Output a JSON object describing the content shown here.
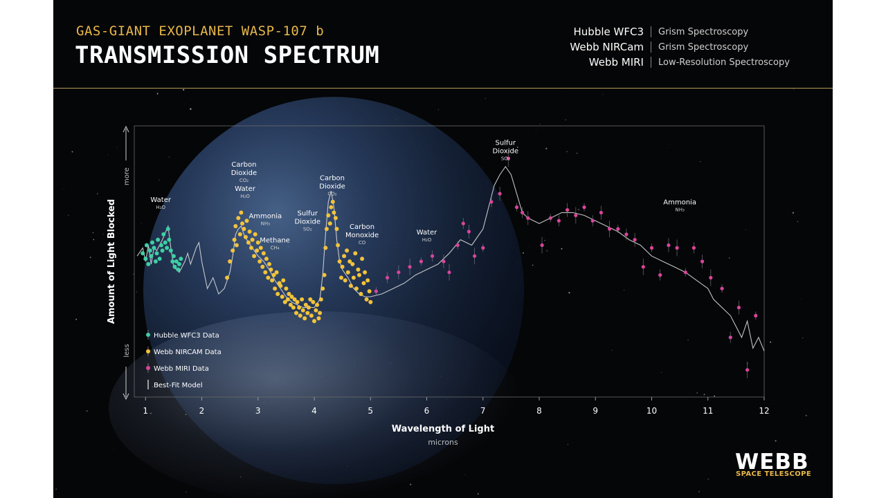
{
  "header": {
    "subtitle": "GAS-GIANT EXOPLANET WASP-107 b",
    "title": "TRANSMISSION SPECTRUM",
    "instruments": [
      {
        "name": "Hubble WFC3",
        "mode": "Grism Spectroscopy"
      },
      {
        "name": "Webb NIRCam",
        "mode": "Grism Spectroscopy"
      },
      {
        "name": "Webb MIRI",
        "mode": "Low-Resolution Spectroscopy"
      }
    ]
  },
  "logo": {
    "word": "WEBB",
    "sub": "SPACE TELESCOPE"
  },
  "chart_data": {
    "type": "scatter",
    "xlabel": "Wavelength of Light",
    "xunits": "microns",
    "ylabel": "Amount of Light Blocked",
    "y_more": "more",
    "y_less": "less",
    "xlim": [
      0.8,
      12
    ],
    "ylim": [
      0,
      100
    ],
    "xticks": [
      "1",
      "2",
      "3",
      "4",
      "5",
      "6",
      "7",
      "8",
      "9",
      "10",
      "11",
      "12"
    ],
    "legend": [
      {
        "label": "Hubble WFC3 Data",
        "color": "#3ecfa5"
      },
      {
        "label": "Webb NIRCAM Data",
        "color": "#f2c33b"
      },
      {
        "label": "Webb MIRI Data",
        "color": "#d9459b"
      },
      {
        "label": "Best-Fit Model",
        "color": "#d8d8d8"
      }
    ],
    "legend_position": "bottom-left",
    "annotations": [
      {
        "name": "Water",
        "formula": "H₂O",
        "x": 1.27,
        "y": 72
      },
      {
        "name": "Carbon Dioxide",
        "formula": "CO₂",
        "x": 2.75,
        "y": 85
      },
      {
        "name": "Water",
        "formula": "H₂O",
        "x": 2.77,
        "y": 76
      },
      {
        "name": "Ammonia",
        "formula": "NH₃",
        "x": 3.13,
        "y": 66
      },
      {
        "name": "Methane",
        "formula": "CH₄",
        "x": 3.3,
        "y": 57
      },
      {
        "name": "Sulfur Dioxide",
        "formula": "SO₂",
        "x": 3.88,
        "y": 67
      },
      {
        "name": "Carbon Dioxide",
        "formula": "CO₂",
        "x": 4.32,
        "y": 80
      },
      {
        "name": "Carbon Monoxide",
        "formula": "CO",
        "x": 4.85,
        "y": 62
      },
      {
        "name": "Water",
        "formula": "H₂O",
        "x": 6.0,
        "y": 60
      },
      {
        "name": "Sulfur Dioxide",
        "formula": "SO₂",
        "x": 7.4,
        "y": 93
      },
      {
        "name": "Ammonia",
        "formula": "NH₃",
        "x": 10.5,
        "y": 71
      }
    ],
    "model": {
      "x": [
        0.85,
        0.95,
        1.0,
        1.05,
        1.1,
        1.15,
        1.2,
        1.3,
        1.4,
        1.45,
        1.5,
        1.6,
        1.7,
        1.75,
        1.8,
        1.9,
        1.95,
        2.0,
        2.1,
        2.2,
        2.3,
        2.4,
        2.5,
        2.55,
        2.6,
        2.65,
        2.7,
        2.75,
        2.8,
        2.9,
        3.0,
        3.1,
        3.2,
        3.3,
        3.4,
        3.5,
        3.6,
        3.7,
        3.8,
        3.9,
        4.0,
        4.1,
        4.15,
        4.2,
        4.25,
        4.3,
        4.35,
        4.4,
        4.45,
        4.5,
        4.6,
        4.7,
        4.8,
        4.9,
        5.0,
        5.2,
        5.4,
        5.6,
        5.8,
        6.0,
        6.2,
        6.4,
        6.6,
        6.8,
        7.0,
        7.1,
        7.2,
        7.3,
        7.4,
        7.5,
        7.6,
        7.7,
        7.8,
        8.0,
        8.2,
        8.4,
        8.6,
        8.8,
        9.0,
        9.2,
        9.4,
        9.6,
        9.8,
        10.0,
        10.2,
        10.4,
        10.6,
        10.8,
        11.0,
        11.1,
        11.2,
        11.4,
        11.5,
        11.6,
        11.7,
        11.8,
        11.9,
        12.0
      ],
      "y": [
        52,
        55,
        50,
        56,
        49,
        55,
        54,
        58,
        63,
        55,
        48,
        46,
        50,
        53,
        49,
        55,
        57,
        50,
        40,
        44,
        38,
        40,
        46,
        52,
        60,
        62,
        63,
        60,
        58,
        55,
        52,
        50,
        47,
        43,
        40,
        37,
        35,
        34,
        33,
        33,
        33,
        36,
        45,
        60,
        72,
        76,
        70,
        58,
        50,
        47,
        44,
        40,
        38,
        37,
        37,
        38,
        40,
        42,
        45,
        47,
        49,
        53,
        58,
        56,
        62,
        70,
        78,
        82,
        85,
        82,
        75,
        68,
        66,
        64,
        66,
        68,
        68,
        67,
        65,
        63,
        61,
        58,
        56,
        52,
        50,
        48,
        46,
        43,
        40,
        36,
        34,
        30,
        26,
        22,
        28,
        18,
        22,
        17
      ]
    },
    "series": [
      {
        "name": "Hubble WFC3 Data",
        "x": [
          0.95,
          1.0,
          1.02,
          1.05,
          1.08,
          1.1,
          1.12,
          1.15,
          1.18,
          1.2,
          1.22,
          1.25,
          1.28,
          1.3,
          1.32,
          1.35,
          1.38,
          1.4,
          1.42,
          1.45,
          1.48,
          1.5,
          1.52,
          1.55,
          1.58,
          1.6,
          1.63
        ],
        "y": [
          53,
          51,
          56,
          49,
          54,
          52,
          57,
          55,
          50,
          53,
          58,
          51,
          56,
          54,
          60,
          57,
          55,
          62,
          58,
          54,
          50,
          52,
          48,
          50,
          47,
          49,
          51
        ]
      },
      {
        "name": "Webb NIRCAM Data",
        "x": [
          2.45,
          2.5,
          2.55,
          2.58,
          2.6,
          2.62,
          2.65,
          2.68,
          2.7,
          2.72,
          2.75,
          2.78,
          2.8,
          2.83,
          2.85,
          2.88,
          2.9,
          2.93,
          2.95,
          2.98,
          3.0,
          3.03,
          3.05,
          3.08,
          3.1,
          3.13,
          3.15,
          3.18,
          3.2,
          3.23,
          3.25,
          3.28,
          3.3,
          3.33,
          3.35,
          3.38,
          3.4,
          3.43,
          3.45,
          3.48,
          3.5,
          3.53,
          3.55,
          3.58,
          3.6,
          3.63,
          3.65,
          3.68,
          3.7,
          3.73,
          3.75,
          3.78,
          3.8,
          3.83,
          3.85,
          3.88,
          3.9,
          3.93,
          3.95,
          3.98,
          4.0,
          4.03,
          4.05,
          4.08,
          4.1,
          4.12,
          4.15,
          4.18,
          4.2,
          4.22,
          4.25,
          4.28,
          4.3,
          4.33,
          4.35,
          4.38,
          4.4,
          4.42,
          4.45,
          4.48,
          4.5,
          4.53,
          4.55,
          4.58,
          4.6,
          4.63,
          4.65,
          4.68,
          4.7,
          4.73,
          4.75,
          4.78,
          4.8,
          4.83,
          4.85,
          4.88,
          4.9,
          4.93,
          4.95,
          4.98,
          5.0
        ],
        "y": [
          44,
          50,
          54,
          58,
          63,
          56,
          66,
          60,
          68,
          64,
          62,
          59,
          65,
          57,
          61,
          55,
          58,
          52,
          60,
          54,
          57,
          50,
          55,
          48,
          53,
          46,
          51,
          44,
          49,
          47,
          43,
          45,
          40,
          46,
          38,
          42,
          41,
          37,
          43,
          35,
          40,
          36,
          38,
          34,
          37,
          33,
          36,
          31,
          35,
          33,
          30,
          36,
          32,
          29,
          34,
          31,
          33,
          36,
          30,
          35,
          28,
          32,
          34,
          29,
          31,
          36,
          40,
          45,
          55,
          62,
          67,
          64,
          70,
          72,
          68,
          66,
          62,
          56,
          50,
          44,
          48,
          52,
          43,
          54,
          46,
          50,
          41,
          49,
          44,
          53,
          40,
          47,
          45,
          38,
          51,
          42,
          46,
          36,
          43,
          39,
          35
        ]
      },
      {
        "name": "Webb MIRI Data",
        "x": [
          5.1,
          5.3,
          5.5,
          5.7,
          5.9,
          6.1,
          6.3,
          6.4,
          6.55,
          6.65,
          6.75,
          6.85,
          7.0,
          7.15,
          7.3,
          7.45,
          7.6,
          7.7,
          7.8,
          8.05,
          8.2,
          8.35,
          8.5,
          8.65,
          8.8,
          8.95,
          9.1,
          9.25,
          9.4,
          9.55,
          9.7,
          9.85,
          10.0,
          10.15,
          10.3,
          10.45,
          10.6,
          10.75,
          10.9,
          11.05,
          11.25,
          11.4,
          11.55,
          11.7,
          11.85
        ],
        "y": [
          39,
          44,
          46,
          48,
          50,
          52,
          50,
          46,
          56,
          64,
          61,
          52,
          55,
          72,
          75,
          88,
          70,
          68,
          66,
          56,
          66,
          65,
          69,
          67,
          70,
          65,
          68,
          62,
          62,
          60,
          58,
          48,
          55,
          45,
          56,
          55,
          46,
          55,
          50,
          44,
          40,
          22,
          33,
          10,
          30
        ]
      }
    ]
  }
}
